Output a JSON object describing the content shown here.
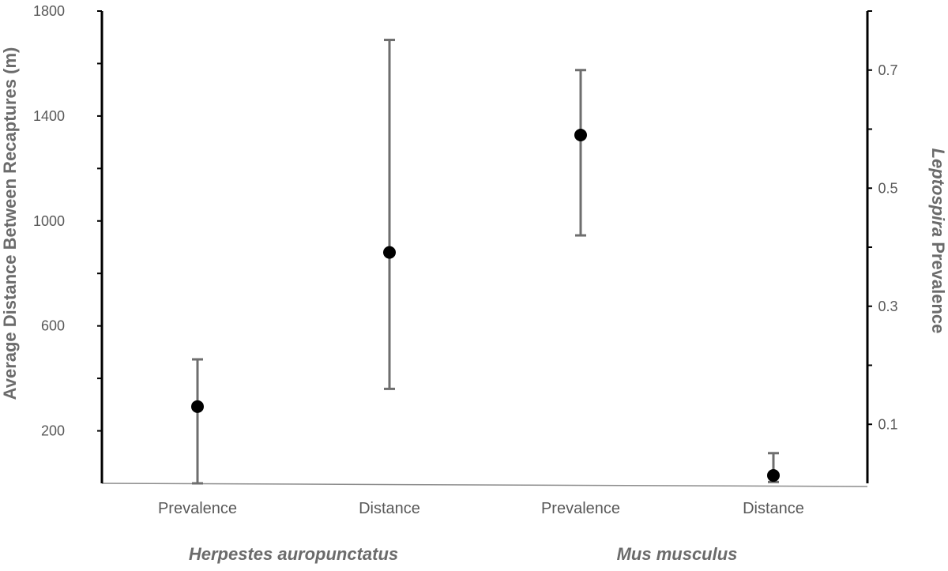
{
  "chart_data": {
    "type": "scatter",
    "title": "",
    "left_axis": {
      "label": "Average Distance Between Recaptures (m)",
      "ylim": [
        0,
        1800
      ],
      "ticks": [
        200,
        600,
        1000,
        1400,
        1800
      ],
      "minor_step": 200
    },
    "right_axis": {
      "label_italic": "Leptospira",
      "label_rest": " Prevalence",
      "ylim": [
        0,
        0.8
      ],
      "ticks": [
        0.1,
        0.3,
        0.5,
        0.7
      ],
      "minor_step": 0.1
    },
    "categories": [
      "Prevalence",
      "Distance",
      "Prevalence",
      "Distance"
    ],
    "groups": [
      {
        "name": "Herpestes auropunctatus",
        "categories": [
          0,
          1
        ]
      },
      {
        "name": "Mus musculus",
        "categories": [
          2,
          3
        ]
      }
    ],
    "points": [
      {
        "category": 0,
        "axis": "right",
        "value": 0.13,
        "lower": 0.0,
        "upper": 0.21
      },
      {
        "category": 1,
        "axis": "left",
        "value": 880,
        "lower": 360,
        "upper": 1690
      },
      {
        "category": 2,
        "axis": "right",
        "value": 0.59,
        "lower": 0.42,
        "upper": 0.7
      },
      {
        "category": 3,
        "axis": "left",
        "value": 30,
        "lower": 5,
        "upper": 115
      }
    ]
  }
}
